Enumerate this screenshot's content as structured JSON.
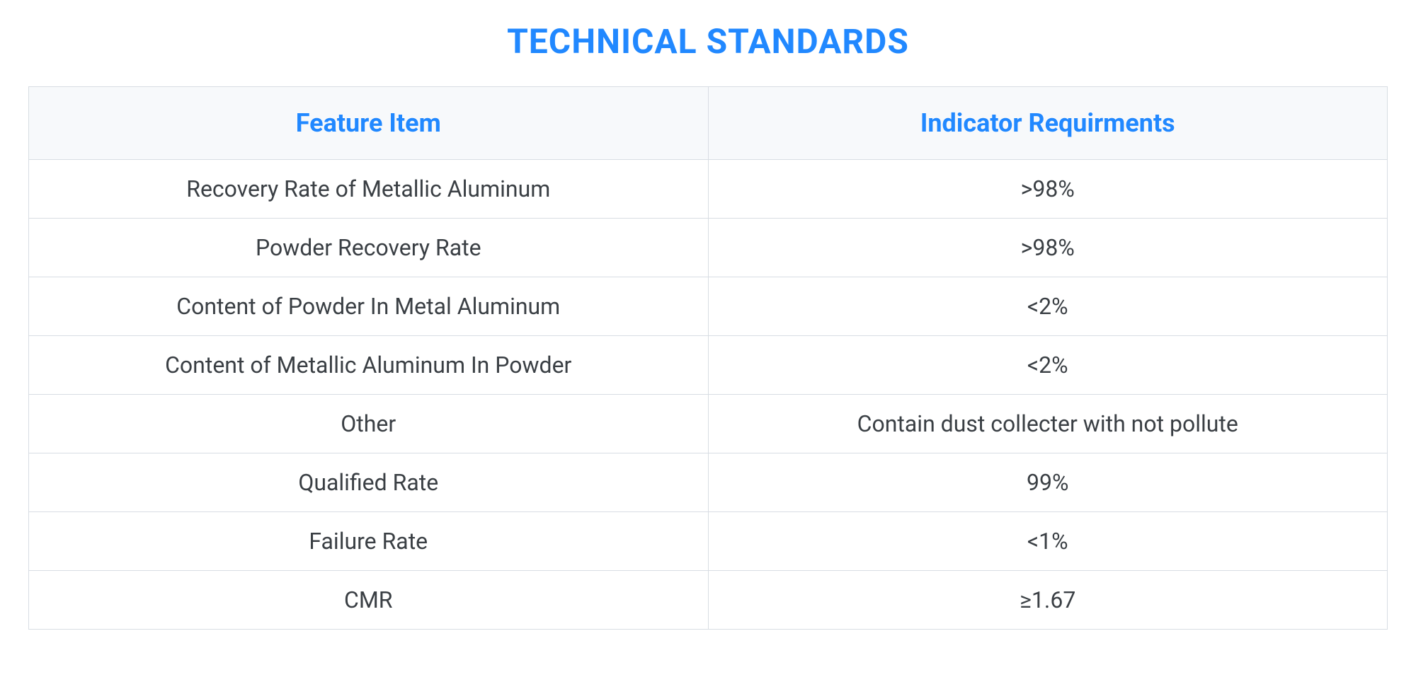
{
  "title": "TECHNICAL STANDARDS",
  "table": {
    "type": "table",
    "columns": [
      "Feature Item",
      "Indicator Requirments"
    ],
    "rows": [
      [
        "Recovery Rate of Metallic Aluminum",
        ">98%"
      ],
      [
        "Powder Recovery Rate",
        ">98%"
      ],
      [
        "Content of Powder In Metal Aluminum",
        "<2%"
      ],
      [
        "Content of Metallic Aluminum In Powder",
        "<2%"
      ],
      [
        "Other",
        "Contain dust collecter with not pollute"
      ],
      [
        "Qualified Rate",
        "99%"
      ],
      [
        "Failure Rate",
        "<1%"
      ],
      [
        "CMR",
        "≥1.67"
      ]
    ],
    "header_bg_color": "#f7f9fb",
    "header_text_color": "#2188ff",
    "header_fontsize": 36,
    "header_fontweight": 700,
    "cell_bg_color": "#ffffff",
    "cell_text_color": "#3a3f44",
    "cell_fontsize": 32,
    "border_color": "#d8dde3",
    "title_color": "#2188ff",
    "title_fontsize": 48,
    "title_fontweight": 700,
    "column_widths": [
      "50%",
      "50%"
    ],
    "text_align": "center"
  }
}
